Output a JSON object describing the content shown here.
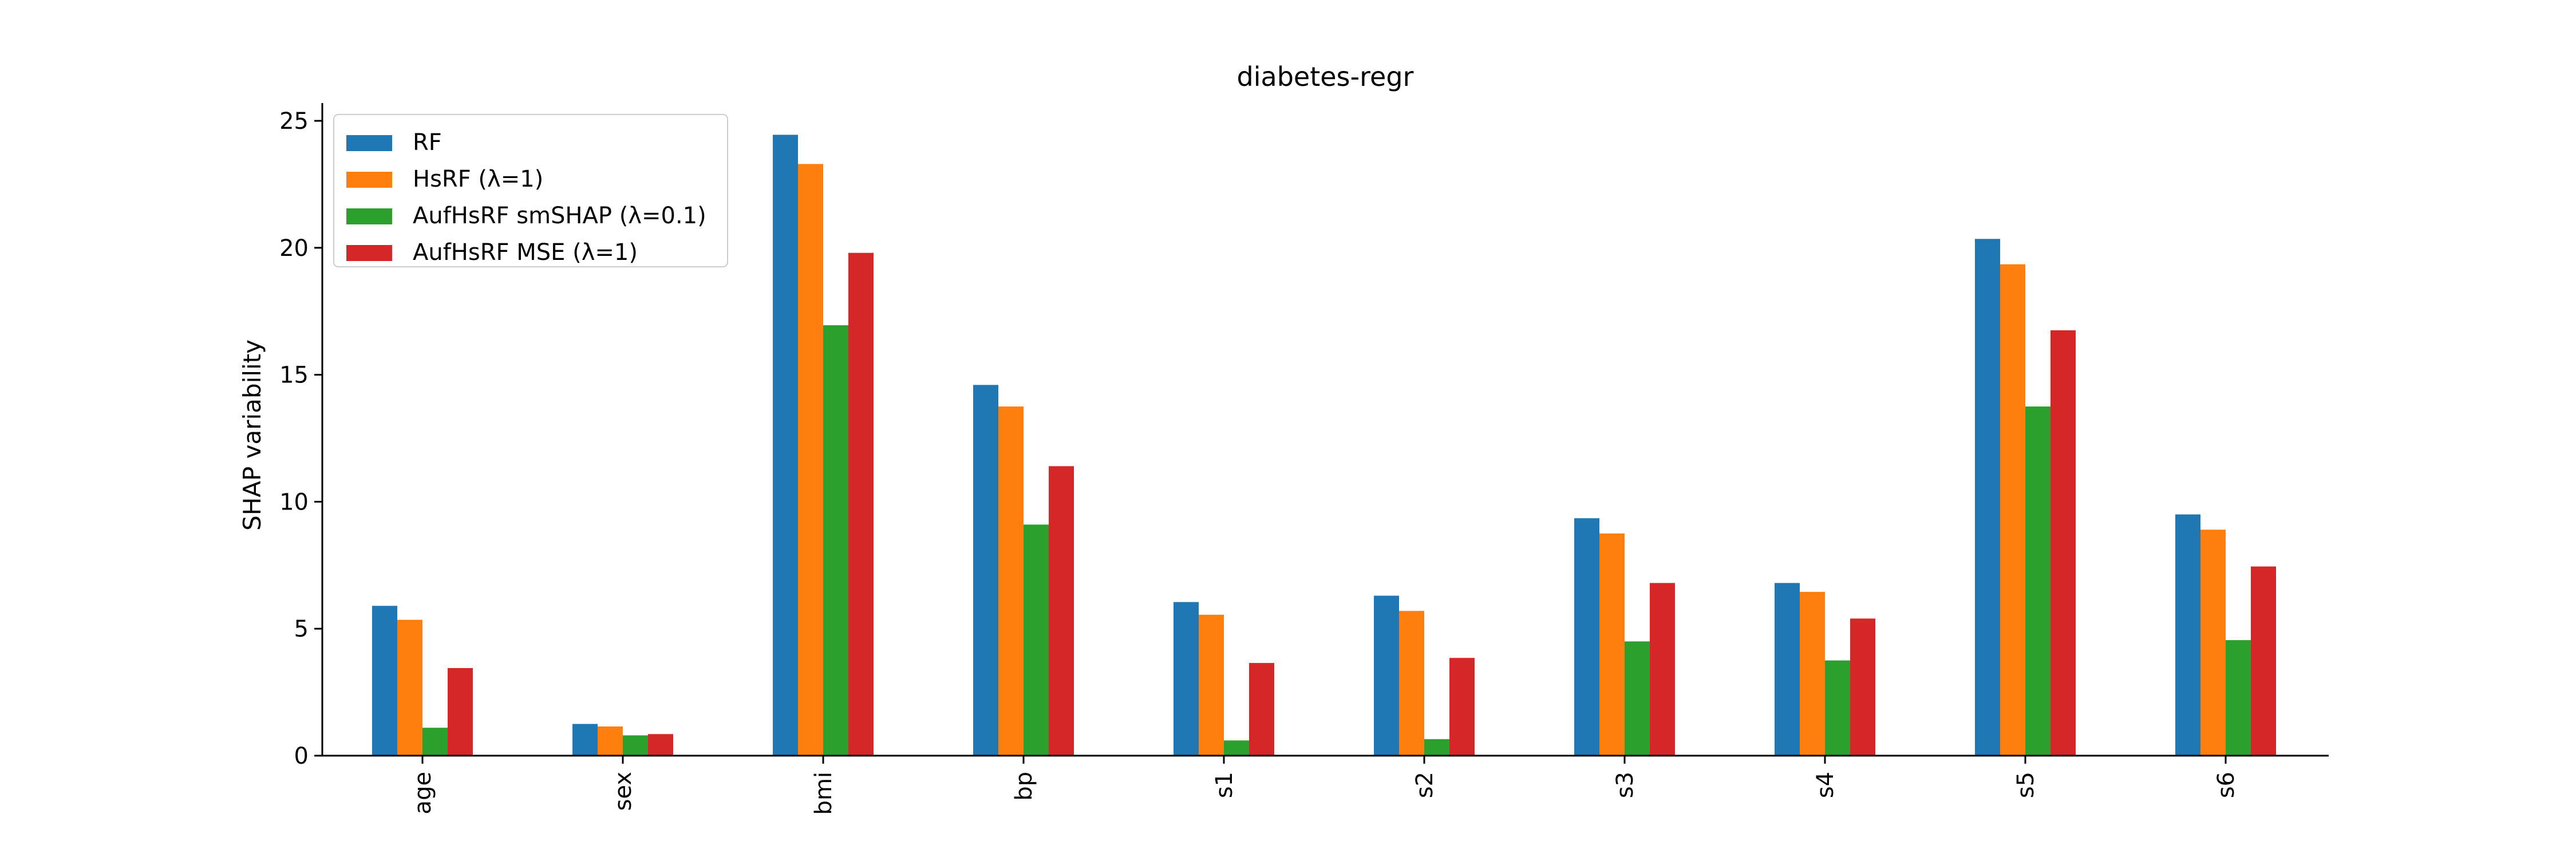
{
  "chart_data": {
    "type": "bar",
    "title": "diabetes-regr",
    "xlabel": "",
    "ylabel": "SHAP variability",
    "categories": [
      "age",
      "sex",
      "bmi",
      "bp",
      "s1",
      "s2",
      "s3",
      "s4",
      "s5",
      "s6"
    ],
    "series": [
      {
        "name": "RF",
        "color": "#1f77b4",
        "values": [
          5.9,
          1.25,
          24.45,
          14.6,
          6.05,
          6.3,
          9.35,
          6.8,
          20.35,
          9.5
        ]
      },
      {
        "name": "HsRF (λ=1)",
        "color": "#ff7f0e",
        "values": [
          5.35,
          1.15,
          23.3,
          13.75,
          5.55,
          5.7,
          8.75,
          6.45,
          19.35,
          8.9
        ]
      },
      {
        "name": "AufHsRF smSHAP (λ=0.1)",
        "color": "#2ca02c",
        "values": [
          1.1,
          0.8,
          16.95,
          9.1,
          0.6,
          0.65,
          4.5,
          3.75,
          13.75,
          4.55
        ]
      },
      {
        "name": "AufHsRF MSE (λ=1)",
        "color": "#d62728",
        "values": [
          3.45,
          0.85,
          19.8,
          11.4,
          3.65,
          3.85,
          6.8,
          5.4,
          16.75,
          7.45
        ]
      }
    ],
    "ylim": [
      0,
      25.7
    ],
    "yticks": [
      0,
      5,
      10,
      15,
      20,
      25
    ],
    "grid": false,
    "legend_position": "top-left"
  }
}
